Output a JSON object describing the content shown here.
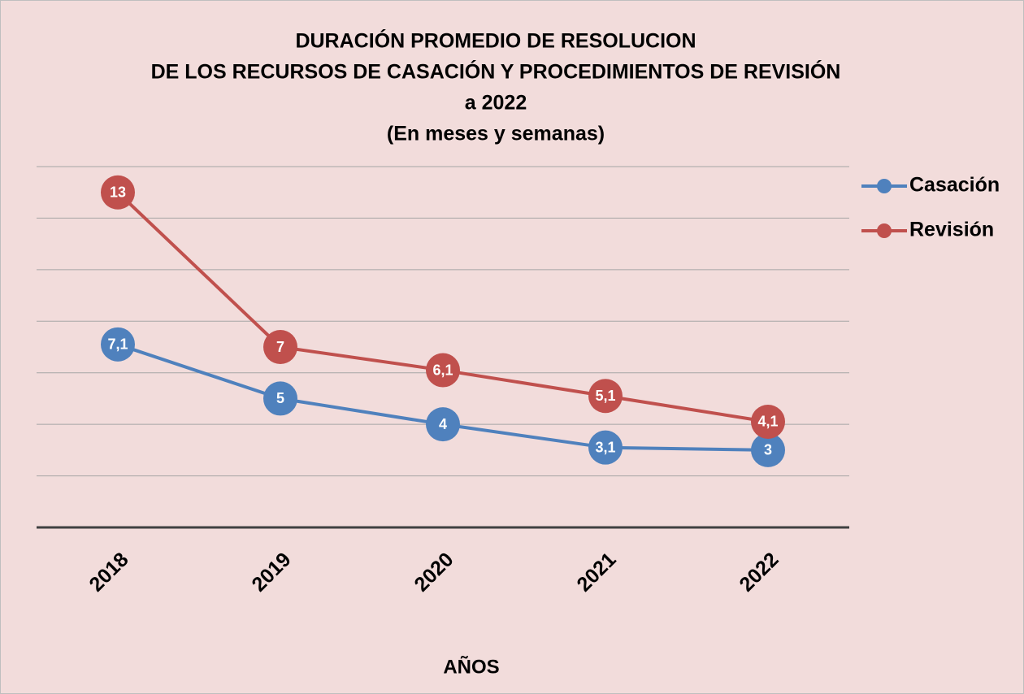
{
  "chart_data": {
    "type": "line",
    "title": [
      "DURACIÓN PROMEDIO DE RESOLUCION",
      "DE LOS RECURSOS DE CASACIÓN Y PROCEDIMIENTOS DE REVISIÓN",
      "a  2022",
      "(En meses y semanas)"
    ],
    "x_label": "AÑOS",
    "categories": [
      "2018",
      "2019",
      "2020",
      "2021",
      "2022"
    ],
    "series": [
      {
        "name": "Casación",
        "color": "#4f81bd",
        "values": [
          7.1,
          5,
          4,
          3.1,
          3
        ],
        "value_labels": [
          "7,1",
          "5",
          "4",
          "3,1",
          "3"
        ]
      },
      {
        "name": "Revisión",
        "color": "#c0504d",
        "values": [
          13,
          7,
          6.1,
          5.1,
          4.1
        ],
        "value_labels": [
          "13",
          "7",
          "6,1",
          "5,1",
          "4,1"
        ]
      }
    ],
    "ylim": [
      0,
      14
    ],
    "yticks": [
      0,
      2,
      4,
      6,
      8,
      10,
      12,
      14
    ],
    "grid": true,
    "legend": "right"
  }
}
